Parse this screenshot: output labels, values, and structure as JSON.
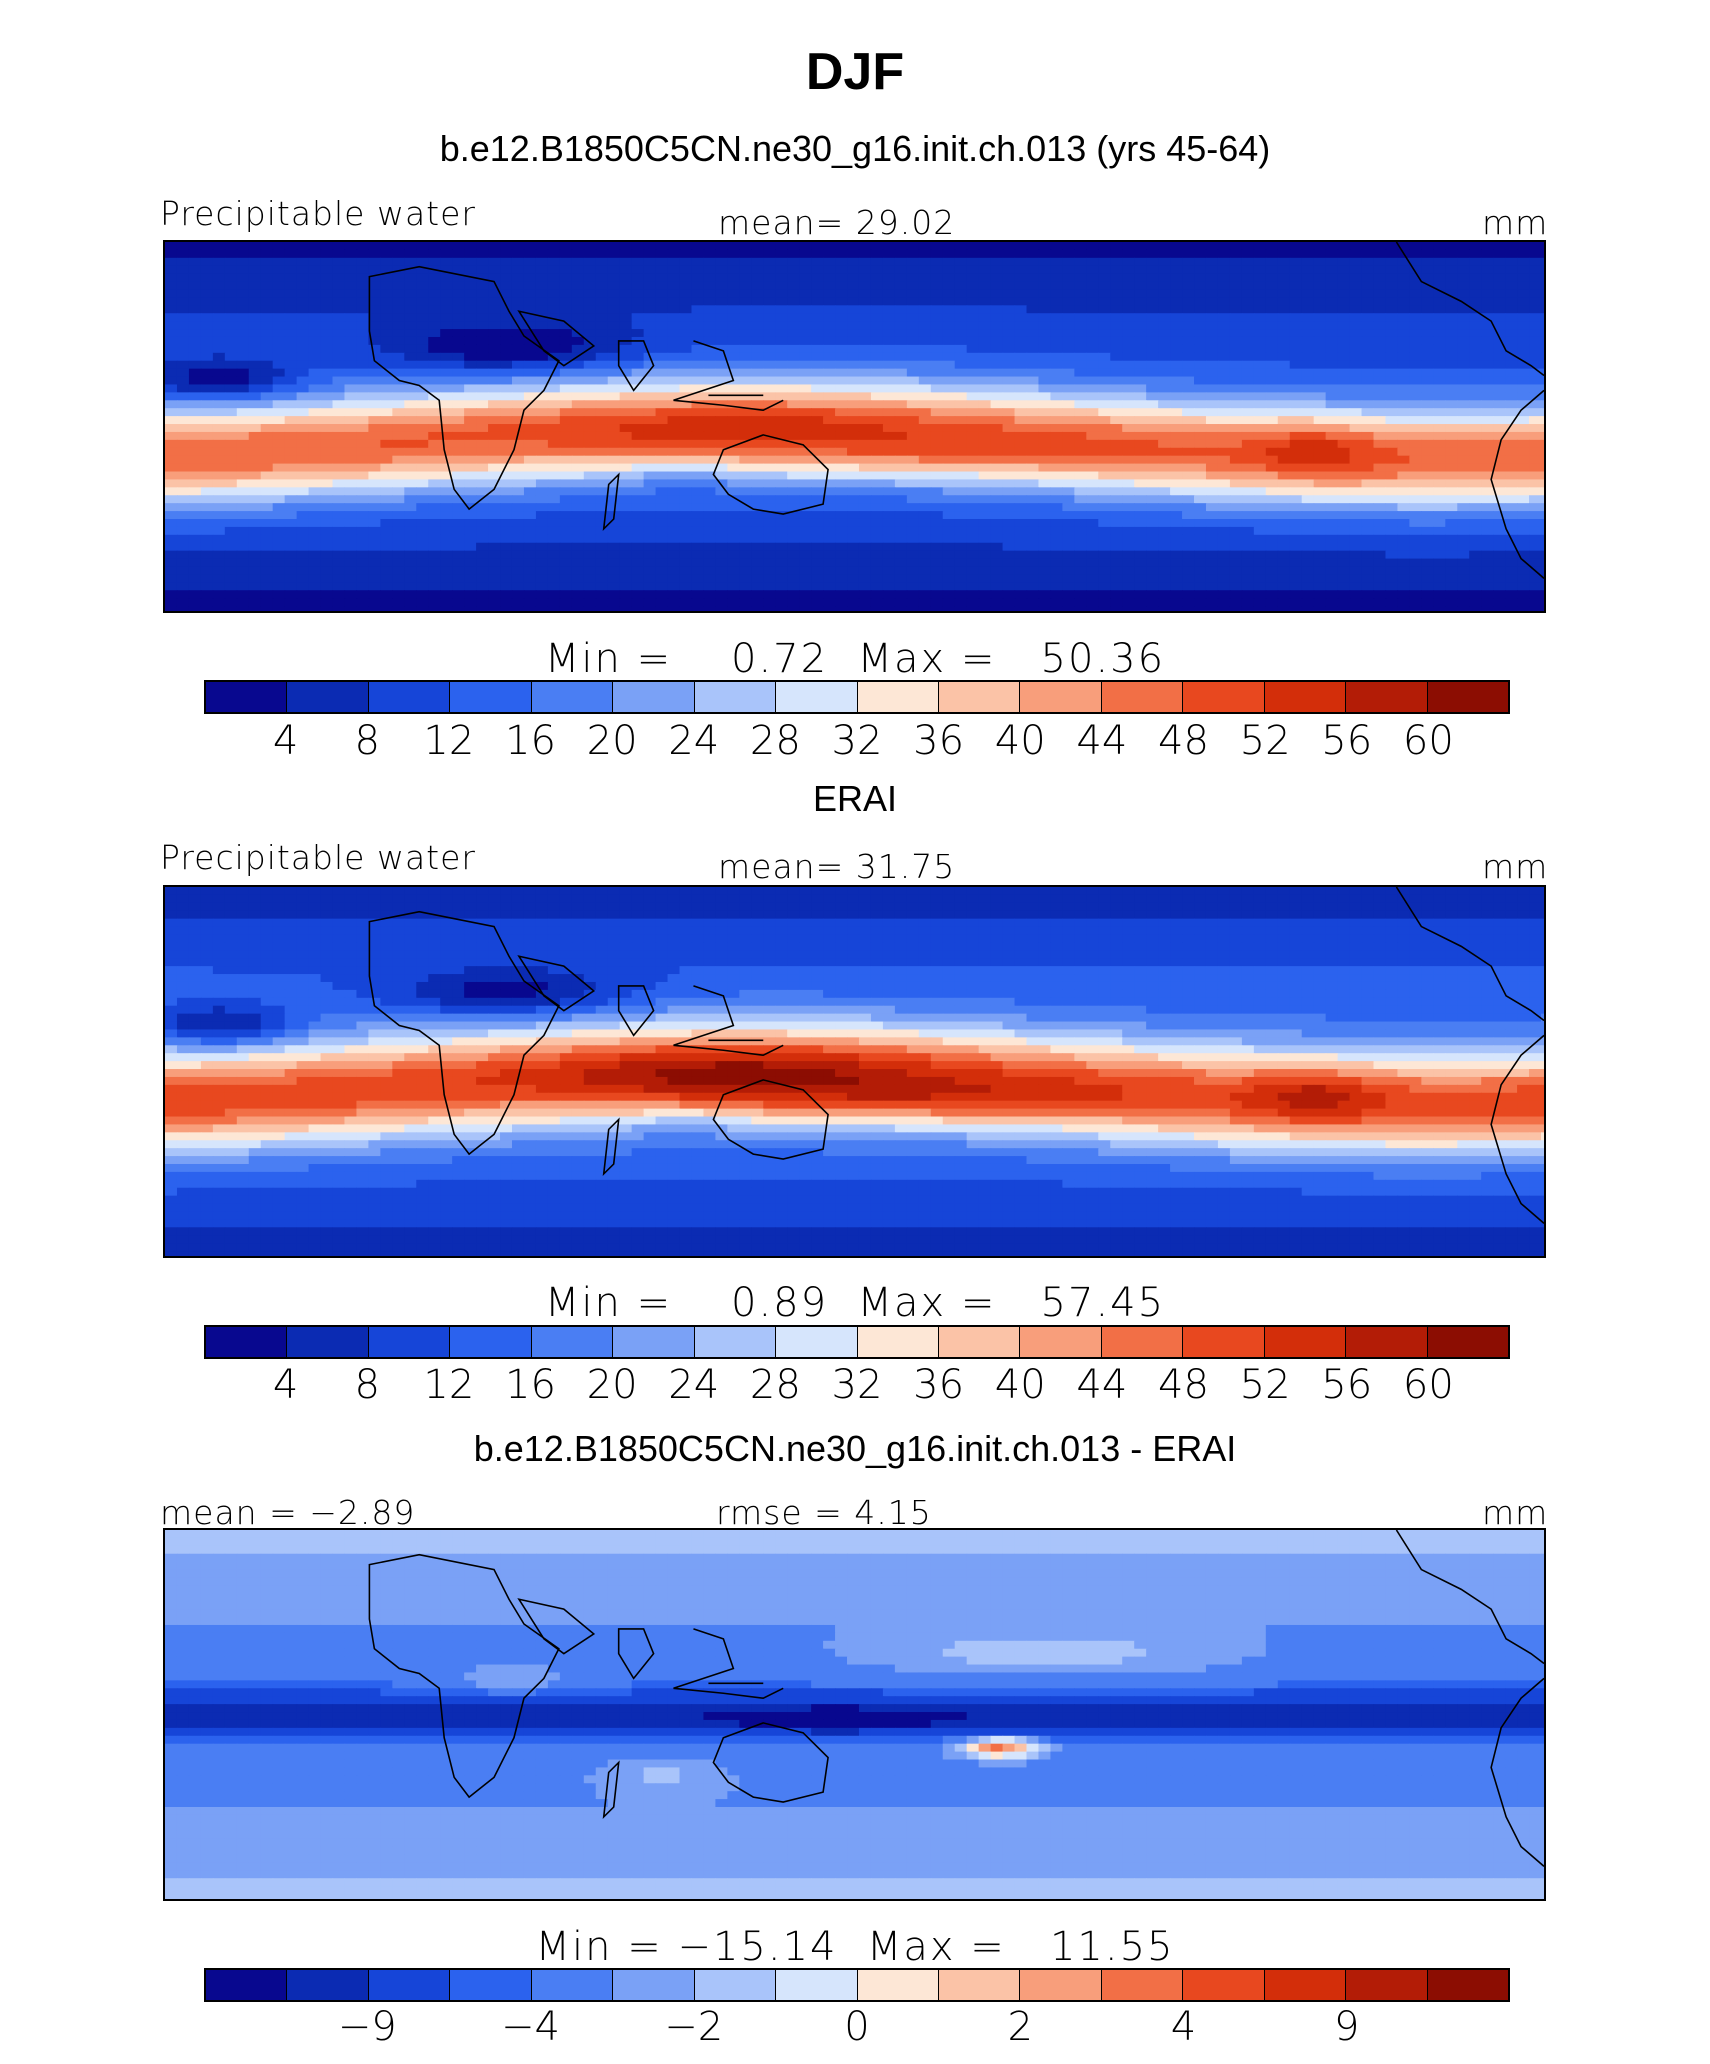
{
  "title": "DJF",
  "colors": [
    "#08088f",
    "#0b2bb3",
    "#1645d8",
    "#2b62ee",
    "#4a7ef3",
    "#7aa1f6",
    "#a9c4fa",
    "#d6e5fc",
    "#fde7d6",
    "#fbc3a7",
    "#f89e7b",
    "#f26f46",
    "#e8481f",
    "#d32e0a",
    "#b31c06",
    "#8c0d02"
  ],
  "panels": [
    {
      "subtitle": "b.e12.B1850C5CN.ne30_g16.init.ch.013 (yrs 45-64)",
      "left_label": "Precipitable water",
      "center_label": "mean=   29.02",
      "right_label": "mm",
      "min_max": "Min =    0.72  Max =   50.36",
      "tick_labels": [
        "4",
        "8",
        "12",
        "16",
        "20",
        "24",
        "28",
        "32",
        "36",
        "40",
        "44",
        "48",
        "52",
        "56",
        "60"
      ],
      "field": "model"
    },
    {
      "subtitle": "ERAI",
      "left_label": "Precipitable water",
      "center_label": "mean=   31.75",
      "right_label": "mm",
      "min_max": "Min =    0.89  Max =   57.45",
      "tick_labels": [
        "4",
        "8",
        "12",
        "16",
        "20",
        "24",
        "28",
        "32",
        "36",
        "40",
        "44",
        "48",
        "52",
        "56",
        "60"
      ],
      "field": "obs"
    },
    {
      "subtitle": "b.e12.B1850C5CN.ne30_g16.init.ch.013 - ERAI",
      "left_label": "mean =  −2.89",
      "center_label": "rmse =    4.15",
      "right_label": "mm",
      "min_max": "Min = −15.14  Max =   11.55",
      "tick_labels": [
        "−9",
        "−4",
        "−2",
        "0",
        "2",
        "4",
        "9"
      ],
      "field": "diff"
    }
  ],
  "map_data": {
    "projection": "cylindrical equidistant",
    "lon_range": [
      0,
      360
    ],
    "lat_range": [
      -90,
      90
    ],
    "variable": "Precipitable water",
    "units": "mm"
  }
}
